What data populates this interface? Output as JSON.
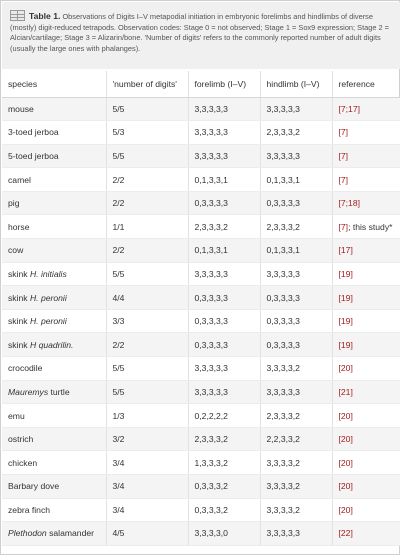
{
  "caption": {
    "label": "Table 1.",
    "text": "Observations of Digits I–V metapodial initiation in embryonic forelimbs and hindlimbs of diverse (mostly) digit-reduced tetrapods. Observation codes: Stage 0 = not observed; Stage 1 = Sox9 expression; Stage 2 = Alcian/cartilage; Stage 3 = Alizarin/bone. 'Number of digits' refers to the commonly reported number of adult digits (usually the large ones with phalanges)."
  },
  "columns": [
    "species",
    "'number of digits'",
    "forelimb (I–V)",
    "hindlimb (I–V)",
    "reference"
  ],
  "rows": [
    {
      "pre": "mouse",
      "italic": "",
      "post": "",
      "digits": "5/5",
      "fore": "3,3,3,3,3",
      "hind": "3,3,3,3,3",
      "refs": [
        "[7;17]"
      ],
      "ref_suffix": ""
    },
    {
      "pre": "3-toed jerboa",
      "italic": "",
      "post": "",
      "digits": "5/3",
      "fore": "3,3,3,3,3",
      "hind": "2,3,3,3,2",
      "refs": [
        "[7]"
      ],
      "ref_suffix": ""
    },
    {
      "pre": "5-toed jerboa",
      "italic": "",
      "post": "",
      "digits": "5/5",
      "fore": "3,3,3,3,3",
      "hind": "3,3,3,3,3",
      "refs": [
        "[7]"
      ],
      "ref_suffix": ""
    },
    {
      "pre": "camel",
      "italic": "",
      "post": "",
      "digits": "2/2",
      "fore": "0,1,3,3,1",
      "hind": "0,1,3,3,1",
      "refs": [
        "[7]"
      ],
      "ref_suffix": ""
    },
    {
      "pre": "pig",
      "italic": "",
      "post": "",
      "digits": "2/2",
      "fore": "0,3,3,3,3",
      "hind": "0,3,3,3,3",
      "refs": [
        "[7;18]"
      ],
      "ref_suffix": ""
    },
    {
      "pre": "horse",
      "italic": "",
      "post": "",
      "digits": "1/1",
      "fore": "2,3,3,3,2",
      "hind": "2,3,3,3,2",
      "refs": [
        "[7]"
      ],
      "ref_suffix": "; this study*"
    },
    {
      "pre": "cow",
      "italic": "",
      "post": "",
      "digits": "2/2",
      "fore": "0,1,3,3,1",
      "hind": "0,1,3,3,1",
      "refs": [
        "[17]"
      ],
      "ref_suffix": ""
    },
    {
      "pre": "skink ",
      "italic": "H. initialis",
      "post": "",
      "digits": "5/5",
      "fore": "3,3,3,3,3",
      "hind": "3,3,3,3,3",
      "refs": [
        "[19]"
      ],
      "ref_suffix": ""
    },
    {
      "pre": "skink ",
      "italic": "H. peronii",
      "post": "",
      "digits": "4/4",
      "fore": "0,3,3,3,3",
      "hind": "0,3,3,3,3",
      "refs": [
        "[19]"
      ],
      "ref_suffix": ""
    },
    {
      "pre": "skink ",
      "italic": "H. peronii",
      "post": "",
      "digits": "3/3",
      "fore": "0,3,3,3,3",
      "hind": "0,3,3,3,3",
      "refs": [
        "[19]"
      ],
      "ref_suffix": ""
    },
    {
      "pre": "skink ",
      "italic": "H quadrilin.",
      "post": "",
      "digits": "2/2",
      "fore": "0,3,3,3,3",
      "hind": "0,3,3,3,3",
      "refs": [
        "[19]"
      ],
      "ref_suffix": ""
    },
    {
      "pre": "crocodile",
      "italic": "",
      "post": "",
      "digits": "5/5",
      "fore": "3,3,3,3,3",
      "hind": "3,3,3,3,2",
      "refs": [
        "[20]"
      ],
      "ref_suffix": ""
    },
    {
      "pre": "",
      "italic": "Mauremys",
      "post": " turtle",
      "digits": "5/5",
      "fore": "3,3,3,3,3",
      "hind": "3,3,3,3,3",
      "refs": [
        "[21]"
      ],
      "ref_suffix": ""
    },
    {
      "pre": "emu",
      "italic": "",
      "post": "",
      "digits": "1/3",
      "fore": "0,2,2,2,2",
      "hind": "2,3,3,3,2",
      "refs": [
        "[20]"
      ],
      "ref_suffix": ""
    },
    {
      "pre": "ostrich",
      "italic": "",
      "post": "",
      "digits": "3/2",
      "fore": "2,3,3,3,2",
      "hind": "2,2,3,3,2",
      "refs": [
        "[20]"
      ],
      "ref_suffix": ""
    },
    {
      "pre": "chicken",
      "italic": "",
      "post": "",
      "digits": "3/4",
      "fore": "1,3,3,3,2",
      "hind": "3,3,3,3,2",
      "refs": [
        "[20]"
      ],
      "ref_suffix": ""
    },
    {
      "pre": "Barbary dove",
      "italic": "",
      "post": "",
      "digits": "3/4",
      "fore": "0,3,3,3,2",
      "hind": "3,3,3,3,2",
      "refs": [
        "[20]"
      ],
      "ref_suffix": ""
    },
    {
      "pre": "zebra finch",
      "italic": "",
      "post": "",
      "digits": "3/4",
      "fore": "0,3,3,3,2",
      "hind": "3,3,3,3,2",
      "refs": [
        "[20]"
      ],
      "ref_suffix": ""
    },
    {
      "pre": "",
      "italic": "Plethodon",
      "post": " salamander",
      "digits": "4/5",
      "fore": "3,3,3,3,0",
      "hind": "3,3,3,3,3",
      "refs": [
        "[22]"
      ],
      "ref_suffix": ""
    }
  ],
  "colors": {
    "reference_link": "#a31c1c",
    "caption_bg": "#f0f0f0",
    "row_stripe": "#f4f4f4"
  }
}
